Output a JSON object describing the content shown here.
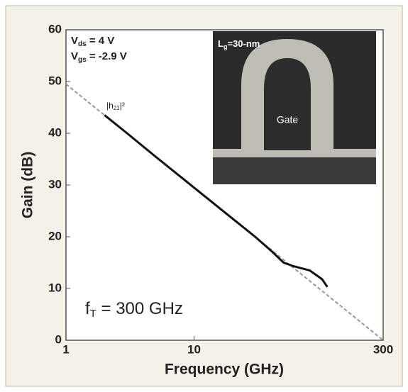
{
  "chart_data": {
    "type": "line",
    "x_label": "Frequency (GHz)",
    "y_label": "Gain (dB)",
    "log_x": true,
    "xlim": [
      1,
      300
    ],
    "xticks": [
      1,
      10,
      300
    ],
    "ylim": [
      0,
      60
    ],
    "yticks": [
      0,
      10,
      20,
      30,
      40,
      50,
      60
    ],
    "series": [
      {
        "color": "#111111",
        "dashed": false,
        "x": [
          2,
          3,
          5,
          10,
          20,
          30,
          40,
          50,
          60,
          80,
          100,
          110
        ],
        "values": [
          43.5,
          40,
          35.5,
          29.5,
          23.5,
          20,
          17.3,
          15,
          14.3,
          13.5,
          11.8,
          10.3
        ]
      },
      {
        "color": "#999999",
        "dashed": true,
        "x": [
          1,
          300
        ],
        "values": [
          49.5,
          0
        ]
      }
    ],
    "annotations": {
      "vds": [
        "V",
        "ds",
        " = 4 V"
      ],
      "vgs": [
        "V",
        "gs",
        " = -2.9 V"
      ],
      "h21": [
        "|h",
        "21",
        "|²"
      ],
      "ft": [
        "f",
        "T",
        " = 300 GHz"
      ],
      "lg": [
        "L",
        "g",
        "=30-nm"
      ],
      "gate": "Gate"
    }
  }
}
